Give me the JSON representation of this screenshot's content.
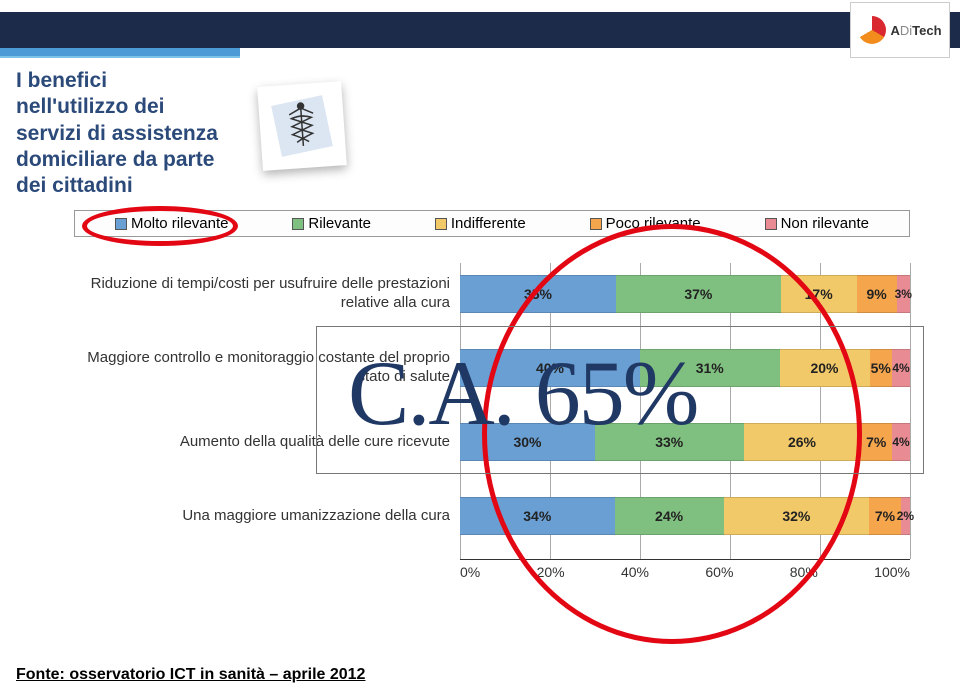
{
  "header": {
    "logo_text_1": "A",
    "logo_text_2": "Di",
    "logo_text_3": "Tech"
  },
  "title": "I benefici\nnell'utilizzo dei\nservizi di assistenza\ndomiciliare da parte\ndei cittadini",
  "legend": {
    "items": [
      {
        "label": "Molto rilevante",
        "color": "#6a9fd4"
      },
      {
        "label": "Rilevante",
        "color": "#7fbf7f"
      },
      {
        "label": "Indifferente",
        "color": "#f2c968"
      },
      {
        "label": "Poco rilevante",
        "color": "#f5a64d"
      },
      {
        "label": "Non rilevante",
        "color": "#e98b93"
      }
    ]
  },
  "chart": {
    "type": "stacked-bar-horizontal",
    "xlim": [
      0,
      100
    ],
    "xtick_step": 20,
    "xticks": [
      "0%",
      "20%",
      "40%",
      "60%",
      "80%",
      "100%"
    ],
    "grid_color": "#aaaaaa",
    "background_color": "#ffffff",
    "label_fontsize": 15,
    "value_fontsize": 14,
    "rows": [
      {
        "label": "Riduzione di tempi/costi per usufruire delle prestazioni\nrelative alla cura",
        "values": [
          35,
          37,
          17,
          9,
          3
        ]
      },
      {
        "label": "Maggiore controllo e monitoraggio costante del proprio\nstato di salute",
        "values": [
          40,
          31,
          20,
          5,
          4
        ]
      },
      {
        "label": "Aumento della qualità delle cure ricevute",
        "values": [
          30,
          33,
          26,
          7,
          4
        ]
      },
      {
        "label": "Una maggiore umanizzazione della cura",
        "values": [
          34,
          24,
          32,
          7,
          2
        ]
      }
    ],
    "colors": [
      "#6a9fd4",
      "#7fbf7f",
      "#f2c968",
      "#f5a64d",
      "#e98b93"
    ]
  },
  "annotations": {
    "overlay_text": "C.A. 65%",
    "overlay_color": "#1f3864",
    "overlay_fontsize": 92,
    "legend_circle": {
      "stroke": "#e30613",
      "stroke_width": 5
    },
    "big_ellipse": {
      "stroke": "#e30613",
      "stroke_width": 5
    }
  },
  "footer": "Fonte: osservatorio ICT in sanità – aprile 2012"
}
